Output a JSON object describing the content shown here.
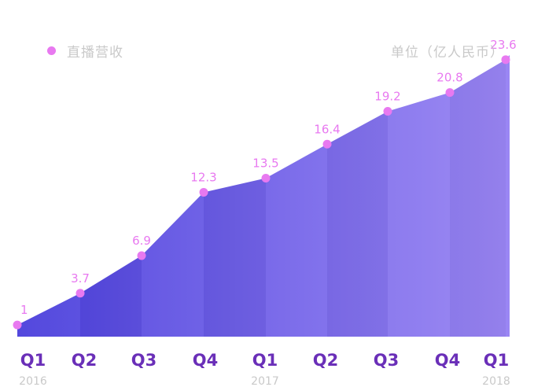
{
  "legend": {
    "label": "直播营收",
    "marker_color": "#e879f0"
  },
  "unit_label": "单位（亿人民币）",
  "chart_data": {
    "type": "area",
    "categories": [
      "Q1",
      "Q2",
      "Q3",
      "Q4",
      "Q1",
      "Q2",
      "Q3",
      "Q4",
      "Q1"
    ],
    "year_labels": [
      "2016",
      "",
      "",
      "",
      "2017",
      "",
      "",
      "",
      "2018"
    ],
    "series": [
      {
        "name": "直播营收",
        "values": [
          1,
          3.7,
          6.9,
          12.3,
          13.5,
          16.4,
          19.2,
          20.8,
          23.6
        ],
        "data_labels": [
          "1",
          "3.7",
          "6.9",
          "12.3",
          "13.5",
          "16.4",
          "19.2",
          "20.8",
          "23.6"
        ]
      }
    ],
    "ylim": [
      0,
      26
    ],
    "grid": false,
    "legend_position": "top-left",
    "colors": {
      "area_start": "#4a3fdc",
      "area_end": "#9a86f4",
      "marker": "#e879f0",
      "data_label": "#e879f0",
      "quarter_label": "#6a2fb8",
      "year_label": "#c9c9c9"
    }
  }
}
